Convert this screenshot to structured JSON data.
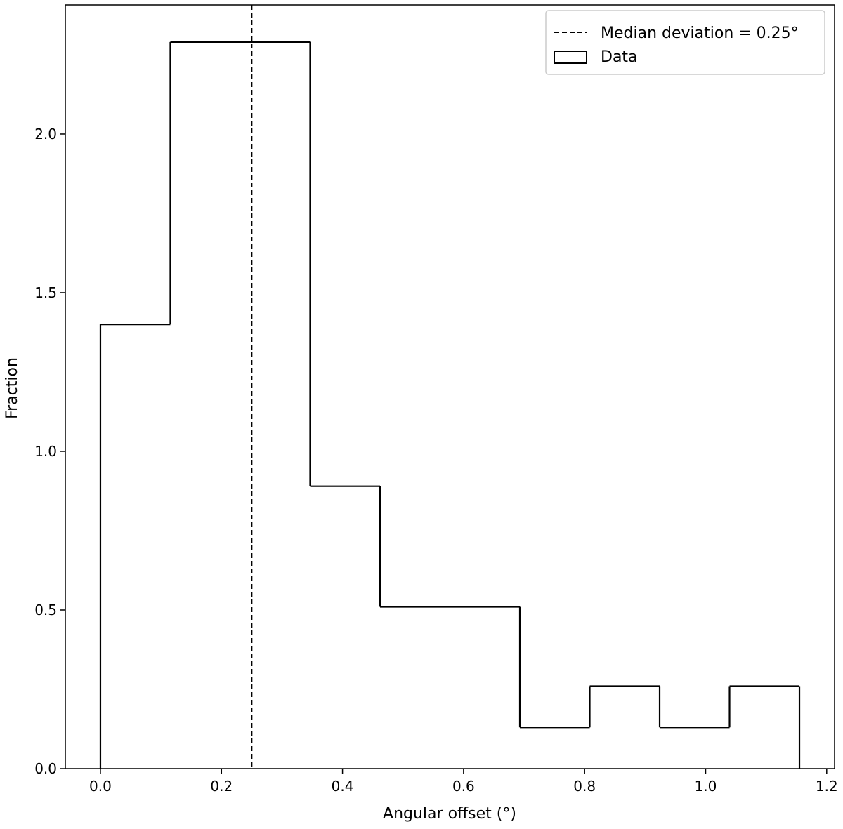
{
  "chart_data": {
    "type": "histogram",
    "xlabel": "Angular offset (°)",
    "ylabel": "Fraction",
    "bins": [
      0,
      0.1155,
      0.231,
      0.3465,
      0.462,
      0.5775,
      0.693,
      0.8085,
      0.924,
      1.0395,
      1.155
    ],
    "series": [
      {
        "name": "Data",
        "color": "#000000",
        "values": [
          1.4,
          2.29,
          2.29,
          0.89,
          0.51,
          0.51,
          0.13,
          0.26,
          0.13,
          0.26
        ]
      }
    ],
    "median": {
      "name": "Median deviation = 0.25°",
      "value": 0.25,
      "color": "#000000"
    },
    "xlim": [
      -0.058,
      1.213
    ],
    "ylim": [
      0,
      2.407
    ],
    "xticks": [
      {
        "value": 0,
        "label": "0.0"
      },
      {
        "value": 0.2,
        "label": "0.2"
      },
      {
        "value": 0.4,
        "label": "0.4"
      },
      {
        "value": 0.6,
        "label": "0.6"
      },
      {
        "value": 0.8,
        "label": "0.8"
      },
      {
        "value": 1.0,
        "label": "1.0"
      },
      {
        "value": 1.2,
        "label": "1.2"
      }
    ],
    "yticks": [
      {
        "value": 0,
        "label": "0.0"
      },
      {
        "value": 0.5,
        "label": "0.5"
      },
      {
        "value": 1.0,
        "label": "1.0"
      },
      {
        "value": 1.5,
        "label": "1.5"
      },
      {
        "value": 2.0,
        "label": "2.0"
      }
    ],
    "grid": false,
    "legend": "upper right"
  }
}
